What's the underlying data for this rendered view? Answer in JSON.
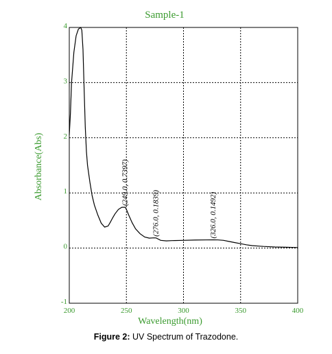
{
  "figure": {
    "caption_label": "Figure 2:",
    "caption_text": " UV Spectrum of Trazodone."
  },
  "chart_data": {
    "type": "line",
    "title": "Sample-1",
    "xlabel": "Wavelength(nm)",
    "ylabel": "Absorbance(Abs)",
    "xlim": [
      200,
      400
    ],
    "ylim": [
      -1,
      4
    ],
    "xticks": [
      200,
      250,
      300,
      350,
      400
    ],
    "yticks": [
      -1,
      0,
      1,
      2,
      3,
      4
    ],
    "grid": true,
    "colors": {
      "text": "#3a9a2e",
      "line": "#000000",
      "grid": "#000000"
    },
    "series": [
      {
        "x": [
          200,
          201,
          202,
          204,
          206,
          208,
          210,
          211,
          212,
          213,
          214,
          215,
          216,
          218,
          220,
          222,
          225,
          228,
          231,
          234,
          236,
          238,
          240,
          243,
          246,
          248,
          249,
          250,
          252,
          255,
          258,
          262,
          266,
          270,
          274,
          276,
          280,
          285,
          290,
          300,
          310,
          320,
          326,
          330,
          335,
          340,
          345,
          350,
          355,
          360,
          370,
          380,
          390,
          400
        ],
        "y": [
          2.05,
          2.45,
          3.0,
          3.55,
          3.85,
          3.97,
          4.0,
          3.95,
          3.6,
          2.9,
          2.2,
          1.75,
          1.5,
          1.2,
          0.95,
          0.78,
          0.6,
          0.45,
          0.38,
          0.4,
          0.47,
          0.55,
          0.62,
          0.7,
          0.74,
          0.74,
          0.74,
          0.7,
          0.6,
          0.46,
          0.35,
          0.26,
          0.2,
          0.18,
          0.185,
          0.1839,
          0.14,
          0.13,
          0.135,
          0.14,
          0.145,
          0.148,
          0.1492,
          0.148,
          0.14,
          0.12,
          0.1,
          0.08,
          0.06,
          0.045,
          0.03,
          0.02,
          0.015,
          0.01
        ]
      }
    ],
    "annotations": [
      {
        "text": "(249.0, 0.7397)",
        "x": 249.0,
        "y": 0.7397
      },
      {
        "text": "(276.0, 0.1839)",
        "x": 276.0,
        "y": 0.1839
      },
      {
        "text": "(326.0, 0.1492)",
        "x": 326.0,
        "y": 0.1492
      }
    ]
  }
}
